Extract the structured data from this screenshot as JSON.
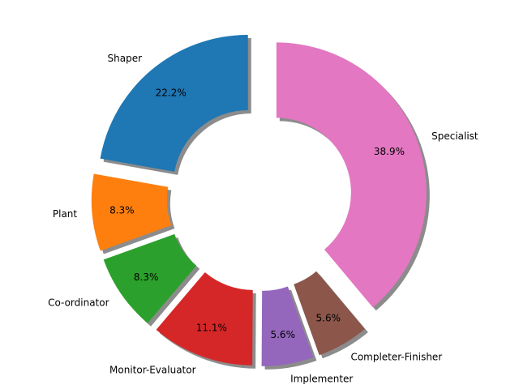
{
  "chart_data": {
    "type": "pie",
    "donut": true,
    "exploded": true,
    "shadow": true,
    "start_angle_deg": 90,
    "direction": "counterclockwise",
    "categories": [
      "Shaper",
      "Plant",
      "Co-ordinator",
      "Monitor-Evaluator",
      "Implementer",
      "Completer-Finisher",
      "Specialist"
    ],
    "values": [
      22.2,
      8.3,
      8.3,
      11.1,
      5.6,
      5.6,
      38.9
    ],
    "percent_labels": [
      "22.2%",
      "8.3%",
      "8.3%",
      "11.1%",
      "5.6%",
      "5.6%",
      "38.9%"
    ],
    "colors": [
      "#1f77b4",
      "#ff7f0e",
      "#2ca02c",
      "#d62728",
      "#9467bd",
      "#8c564b",
      "#e377c2"
    ],
    "title": "",
    "legend": "none"
  }
}
